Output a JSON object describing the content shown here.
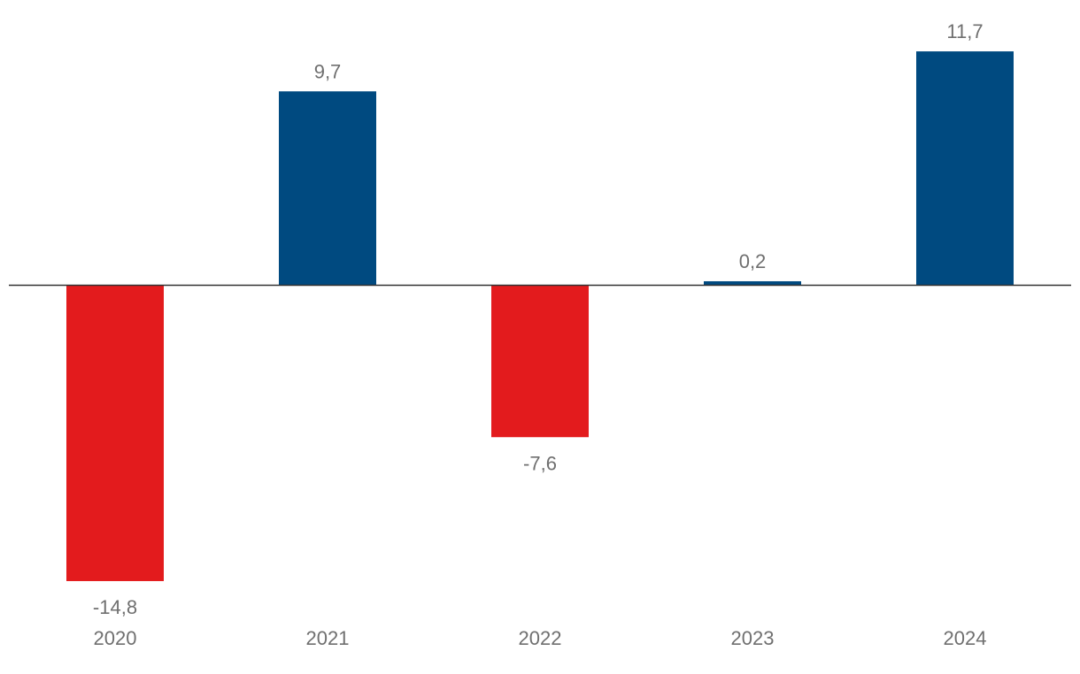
{
  "chart_data": {
    "type": "bar",
    "categories": [
      "2020",
      "2021",
      "2022",
      "2023",
      "2024"
    ],
    "values": [
      -14.8,
      9.7,
      -7.6,
      0.2,
      11.7
    ],
    "data_labels": [
      "-14,8",
      "9,7",
      "-7,6",
      "0,2",
      "11,7"
    ],
    "title": "",
    "xlabel": "",
    "ylabel": "",
    "ylim": [
      -14.8,
      11.7
    ],
    "grid": false,
    "legend": "none",
    "colors": {
      "positive": "#004a80",
      "negative": "#e31b1d",
      "axis": "#333333",
      "label": "#6f6f6f"
    }
  }
}
